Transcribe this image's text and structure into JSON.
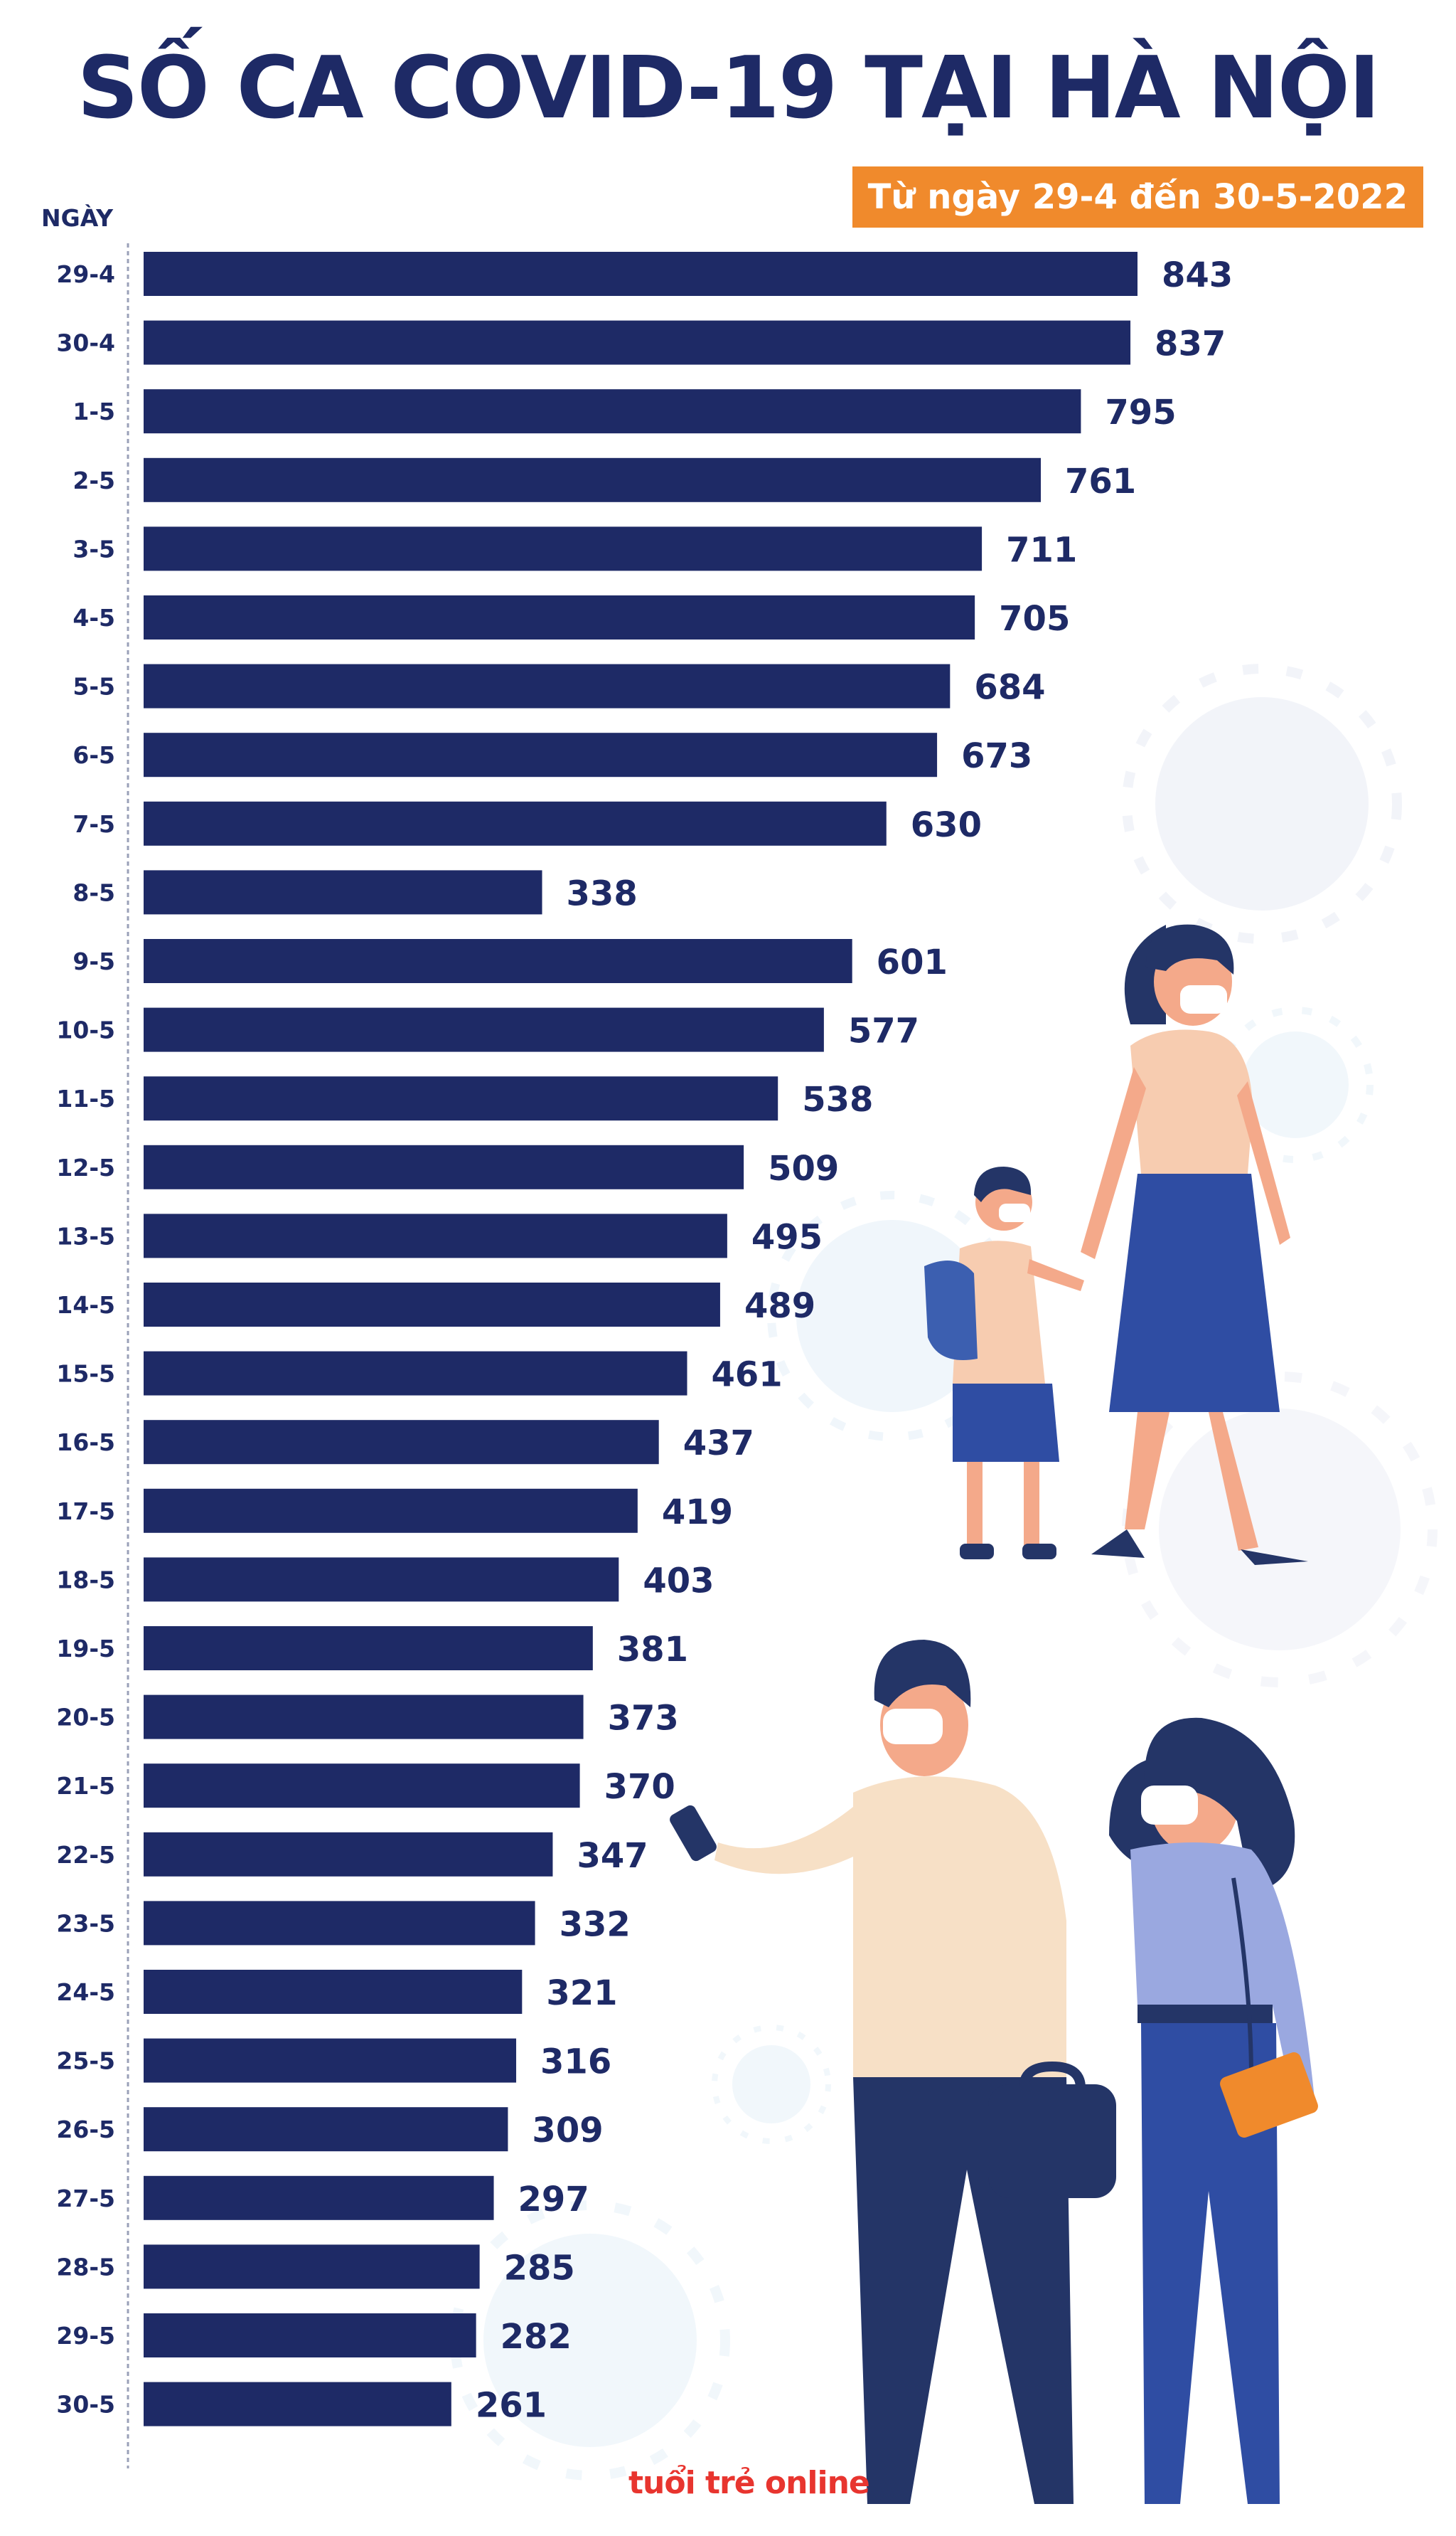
{
  "header": {
    "title": "SỐ CA COVID-19 TẠI HÀ NỘI",
    "subtitle": "Từ ngày 29-4 đến 30-5-2022",
    "axis_label": "NGÀY"
  },
  "branding": {
    "logo_text": "tuổi trẻ online"
  },
  "colors": {
    "bar": "#1e2a66",
    "accent": "#f08a2c",
    "brand": "#e8352f"
  },
  "chart_data": {
    "type": "bar",
    "orientation": "horizontal",
    "title": "SỐ CA COVID-19 TẠI HÀ NỘI",
    "subtitle": "Từ ngày 29-4 đến 30-5-2022",
    "ylabel": "NGÀY",
    "xlabel": "",
    "xlim": [
      0,
      900
    ],
    "grid": false,
    "categories": [
      "29-4",
      "30-4",
      "1-5",
      "2-5",
      "3-5",
      "4-5",
      "5-5",
      "6-5",
      "7-5",
      "8-5",
      "9-5",
      "10-5",
      "11-5",
      "12-5",
      "13-5",
      "14-5",
      "15-5",
      "16-5",
      "17-5",
      "18-5",
      "19-5",
      "20-5",
      "21-5",
      "22-5",
      "23-5",
      "24-5",
      "25-5",
      "26-5",
      "27-5",
      "28-5",
      "29-5",
      "30-5"
    ],
    "values": [
      843,
      837,
      795,
      761,
      711,
      705,
      684,
      673,
      630,
      338,
      601,
      577,
      538,
      509,
      495,
      489,
      461,
      437,
      419,
      403,
      381,
      373,
      370,
      347,
      332,
      321,
      316,
      309,
      297,
      285,
      282,
      261
    ]
  }
}
